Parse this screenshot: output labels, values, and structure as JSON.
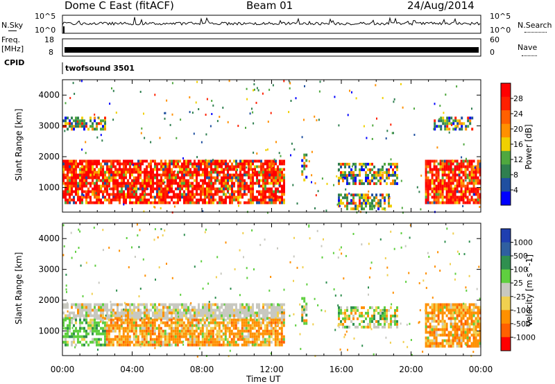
{
  "header": {
    "radar": "Dome C East (fitACF)",
    "beam": "Beam 01",
    "date": "24/Aug/2014"
  },
  "sky_panel": {
    "left_label": "N.Sky",
    "right_label": "N.Search",
    "left_ticks": [
      "10^5",
      "10^0"
    ],
    "right_ticks": [
      "10^5",
      "10^0"
    ]
  },
  "freq_panel": {
    "left_label_1": "Freq.",
    "left_label_2": "[MHz]",
    "right_label": "Nave",
    "left_ticks": [
      "18",
      "8"
    ],
    "right_ticks": [
      "60",
      "0"
    ]
  },
  "cpid_panel": {
    "label": "CPID",
    "program": "twofsound 3501"
  },
  "colors": {
    "power_scale": [
      "#0000ff",
      "#1f4fa0",
      "#2f7f4f",
      "#4fa83f",
      "#f0d000",
      "#ff9000",
      "#ff6000",
      "#ff2000",
      "#ff0000"
    ],
    "velocity_scale": [
      "#1f3fb0",
      "#2f5fa0",
      "#2f8f4f",
      "#5fcf3f",
      "#c8c8c0",
      "#f0d050",
      "#ff9000",
      "#ff6000",
      "#ff0000"
    ]
  },
  "chart_data": [
    {
      "type": "heatmap",
      "title": "",
      "xlabel": "",
      "ylabel": "Slant Range [km]",
      "xlim": [
        "00:00",
        "24:00"
      ],
      "ylim": [
        200,
        4500
      ],
      "yticks": [
        "1000",
        "2000",
        "3000",
        "4000"
      ],
      "colorbar": {
        "label": "Power [dB]",
        "ticks": [
          "4",
          "8",
          "12",
          "16",
          "20",
          "24",
          "28"
        ],
        "range": [
          0,
          30
        ]
      },
      "echo_regions": [
        {
          "t_start": 0.0,
          "t_end": 12.7,
          "range_min": 500,
          "range_max": 1900,
          "level": "high"
        },
        {
          "t_start": 0.0,
          "t_end": 2.5,
          "range_min": 2900,
          "range_max": 3300,
          "level": "mid"
        },
        {
          "t_start": 13.7,
          "t_end": 14.0,
          "range_min": 1200,
          "range_max": 2100,
          "level": "mid"
        },
        {
          "t_start": 15.8,
          "t_end": 19.2,
          "range_min": 1100,
          "range_max": 1800,
          "level": "mid"
        },
        {
          "t_start": 15.8,
          "t_end": 18.9,
          "range_min": 300,
          "range_max": 800,
          "level": "mid"
        },
        {
          "t_start": 20.8,
          "t_end": 24.0,
          "range_min": 500,
          "range_max": 1900,
          "level": "high"
        },
        {
          "t_start": 21.3,
          "t_end": 23.5,
          "range_min": 2900,
          "range_max": 3300,
          "level": "mid"
        }
      ]
    },
    {
      "type": "heatmap",
      "title": "",
      "xlabel": "Time UT",
      "ylabel": "Slant Range [km]",
      "xlim": [
        "00:00",
        "24:00"
      ],
      "ylim": [
        200,
        4500
      ],
      "xticks": [
        "00:00",
        "04:00",
        "08:00",
        "12:00",
        "16:00",
        "20:00",
        "00:00"
      ],
      "yticks": [
        "1000",
        "2000",
        "3000",
        "4000"
      ],
      "colorbar": {
        "label": "Velocity [m s^-1]",
        "ticks": [
          "1000",
          "500",
          "100",
          "25",
          "-25",
          "-100",
          "-500",
          "-1000"
        ]
      },
      "echo_regions": [
        {
          "t_start": 0.0,
          "t_end": 12.7,
          "range_min": 1400,
          "range_max": 1900,
          "level": "near-zero"
        },
        {
          "t_start": 0.0,
          "t_end": 2.5,
          "range_min": 500,
          "range_max": 1400,
          "level": "positive"
        },
        {
          "t_start": 2.5,
          "t_end": 12.7,
          "range_min": 500,
          "range_max": 1400,
          "level": "negative"
        },
        {
          "t_start": 13.7,
          "t_end": 14.0,
          "range_min": 1200,
          "range_max": 2100,
          "level": "mixed"
        },
        {
          "t_start": 15.8,
          "t_end": 19.2,
          "range_min": 1100,
          "range_max": 1800,
          "level": "mixed"
        },
        {
          "t_start": 20.8,
          "t_end": 24.0,
          "range_min": 500,
          "range_max": 1900,
          "level": "negative"
        }
      ]
    }
  ]
}
